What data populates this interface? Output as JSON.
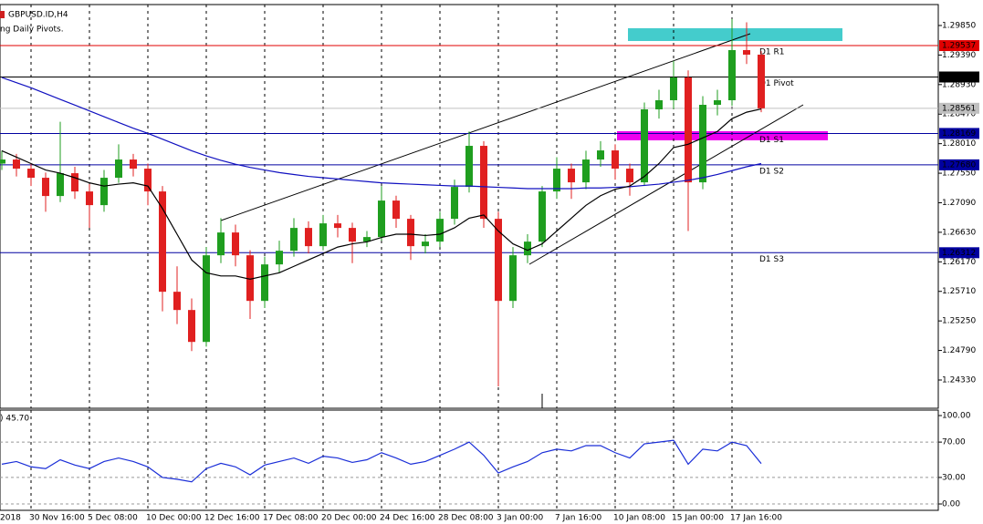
{
  "chart_data": {
    "type": "candlestick",
    "title": "GBPUSD.ID,H4",
    "subtitle": "ng Daily Pivots.",
    "categories": [
      "2018",
      null,
      "30 Nov 16:00",
      null,
      null,
      null,
      "5 Dec 08:00",
      null,
      null,
      null,
      "10 Dec 00:00",
      null,
      null,
      null,
      "12 Dec 16:00",
      null,
      null,
      null,
      "17 Dec 08:00",
      null,
      null,
      null,
      "20 Dec 00:00",
      null,
      null,
      null,
      "24 Dec 16:00",
      null,
      null,
      null,
      "28 Dec 08:00",
      null,
      null,
      null,
      "3 Jan 00:00",
      null,
      null,
      null,
      "7 Jan 16:00",
      null,
      null,
      null,
      "10 Jan 08:00",
      null,
      null,
      null,
      "15 Jan 00:00",
      null,
      null,
      null,
      "17 Jan 16:00",
      null,
      null
    ],
    "open": [
      1.277,
      1.27763,
      1.27621,
      1.27479,
      1.27195,
      1.2755,
      1.27266,
      1.27053,
      1.27479,
      1.27763,
      1.27621,
      1.27266,
      1.25704,
      1.2542,
      1.24923,
      1.26272,
      1.26627,
      1.26272,
      1.25562,
      1.2613,
      1.26343,
      1.26698,
      1.26414,
      1.26769,
      1.26698,
      1.26485,
      1.26556,
      1.27124,
      1.2684,
      1.26414,
      1.26485,
      1.2684,
      1.27337,
      1.27976,
      1.2684,
      1.25562,
      1.26272,
      1.26485,
      1.27266,
      1.27621,
      1.27408,
      1.27763,
      1.27905,
      1.27621,
      1.27408,
      1.28544,
      1.28686,
      1.29041,
      1.27408,
      1.28615,
      1.28686,
      1.29467,
      1.29396
    ],
    "high": [
      1.279,
      1.2785,
      1.277,
      1.2756,
      1.2835,
      1.2765,
      1.2738,
      1.276,
      1.28,
      1.2785,
      1.277,
      1.2735,
      1.261,
      1.256,
      1.264,
      1.2685,
      1.2675,
      1.2635,
      1.2625,
      1.265,
      1.2685,
      1.268,
      1.269,
      1.269,
      1.2678,
      1.2665,
      1.2735,
      1.272,
      1.269,
      1.266,
      1.2695,
      1.2745,
      1.282,
      1.2805,
      1.2695,
      1.264,
      1.266,
      1.2735,
      1.278,
      1.277,
      1.279,
      1.2805,
      1.28,
      1.277,
      1.2865,
      1.2885,
      1.293,
      1.2915,
      1.2875,
      1.2885,
      1.2995,
      1.299,
      1.2945
    ],
    "low": [
      1.276,
      1.275,
      1.2735,
      1.2695,
      1.271,
      1.2715,
      1.267,
      1.2695,
      1.274,
      1.275,
      1.2705,
      1.254,
      1.252,
      1.2478,
      1.2485,
      1.2615,
      1.261,
      1.2528,
      1.2545,
      1.26,
      1.2625,
      1.263,
      1.2635,
      1.2655,
      1.2615,
      1.264,
      1.265,
      1.267,
      1.262,
      1.263,
      1.264,
      1.2675,
      1.2725,
      1.267,
      1.2423,
      1.2545,
      1.2615,
      1.264,
      1.2715,
      1.2715,
      1.273,
      1.2765,
      1.2745,
      1.272,
      1.2735,
      1.284,
      1.2855,
      1.2665,
      1.273,
      1.2845,
      1.286,
      1.2925,
      1.285
    ],
    "close": [
      1.27763,
      1.27621,
      1.27479,
      1.27195,
      1.2755,
      1.27266,
      1.27053,
      1.27479,
      1.27763,
      1.27621,
      1.27266,
      1.25704,
      1.2542,
      1.24923,
      1.26272,
      1.26627,
      1.26272,
      1.25562,
      1.2613,
      1.26343,
      1.26698,
      1.26414,
      1.26769,
      1.26698,
      1.26485,
      1.26556,
      1.27124,
      1.2684,
      1.26414,
      1.26485,
      1.2684,
      1.27337,
      1.27976,
      1.2684,
      1.25562,
      1.26272,
      1.26485,
      1.27266,
      1.27621,
      1.27408,
      1.27763,
      1.27905,
      1.27621,
      1.27408,
      1.28544,
      1.28686,
      1.29041,
      1.27408,
      1.28615,
      1.28686,
      1.29467,
      1.29396,
      1.28561
    ],
    "up_color": "#1f9e1f",
    "down_color": "#e02020",
    "moving_averages": [
      {
        "color": "#1010c0",
        "values": [
          1.2904,
          1.2896,
          1.2888,
          1.2879,
          1.287,
          1.2861,
          1.2852,
          1.2843,
          1.2834,
          1.2825,
          1.2817,
          1.2808,
          1.2799,
          1.279,
          1.2782,
          1.2775,
          1.2769,
          1.2764,
          1.276,
          1.2756,
          1.2753,
          1.275,
          1.2748,
          1.2746,
          1.2744,
          1.2742,
          1.274,
          1.2739,
          1.2738,
          1.2737,
          1.2736,
          1.2735,
          1.2735,
          1.2734,
          1.2733,
          1.2732,
          1.2731,
          1.2731,
          1.2731,
          1.2731,
          1.2732,
          1.2732,
          1.2733,
          1.2734,
          1.2736,
          1.2738,
          1.2741,
          1.2744,
          1.2748,
          1.2753,
          1.2759,
          1.2765,
          1.277
        ]
      },
      {
        "color": "#000000",
        "values": [
          1.279,
          1.278,
          1.277,
          1.276,
          1.2755,
          1.2748,
          1.274,
          1.2735,
          1.2738,
          1.274,
          1.2735,
          1.27,
          1.266,
          1.262,
          1.26,
          1.2595,
          1.2595,
          1.259,
          1.2595,
          1.26,
          1.261,
          1.262,
          1.263,
          1.264,
          1.2645,
          1.2648,
          1.2655,
          1.266,
          1.266,
          1.2658,
          1.266,
          1.267,
          1.2685,
          1.269,
          1.2665,
          1.2645,
          1.2635,
          1.2645,
          1.2665,
          1.2685,
          1.2705,
          1.272,
          1.273,
          1.2735,
          1.275,
          1.277,
          1.2795,
          1.28,
          1.281,
          1.282,
          1.284,
          1.285,
          1.2855
        ]
      }
    ],
    "ylim": [
      1.2389,
      1.30176
    ],
    "yticks": [
      {
        "value": 1.2985,
        "label": "1.29850"
      },
      {
        "value": 1.2939,
        "label": "1.29390"
      },
      {
        "value": 1.2893,
        "label": "1.28930"
      },
      {
        "value": 1.2847,
        "label": "1.28470"
      },
      {
        "value": 1.2801,
        "label": "1.28010"
      },
      {
        "value": 1.2755,
        "label": "1.27550"
      },
      {
        "value": 1.2709,
        "label": "1.27090"
      },
      {
        "value": 1.2663,
        "label": "1.26630"
      },
      {
        "value": 1.2617,
        "label": "1.26170"
      },
      {
        "value": 1.2571,
        "label": "1.25710"
      },
      {
        "value": 1.2525,
        "label": "1.25250"
      },
      {
        "value": 1.2479,
        "label": "1.24790"
      },
      {
        "value": 1.2433,
        "label": "1.24330"
      }
    ],
    "levels": [
      {
        "name": "D1 R1",
        "color": "#e00000",
        "value": 1.29537,
        "label": "1.29537"
      },
      {
        "name": "D1 Pivot",
        "color": "#000000",
        "value": 1.29048,
        "label": "1.29048"
      },
      {
        "name": "D1 S1",
        "color": "#0000a0",
        "value": 1.28169,
        "label": "1.28169"
      },
      {
        "name": "D1 S2",
        "color": "#0000a0",
        "value": 1.2768,
        "label": "1.27680"
      },
      {
        "name": "D1 S3",
        "color": "#0000a0",
        "value": 1.26312,
        "label": "1.26312"
      }
    ],
    "current_price": {
      "value": 1.28561,
      "label": "1.28561",
      "color": "#c0c0c0"
    },
    "oscillator": {
      "label": ") 45.70",
      "color": "#1a2ed8",
      "values": [
        45,
        48,
        42,
        40,
        50,
        44,
        40,
        48,
        52,
        48,
        42,
        30,
        28,
        25,
        40,
        46,
        42,
        33,
        44,
        48,
        52,
        46,
        54,
        52,
        47,
        50,
        58,
        52,
        45,
        48,
        55,
        62,
        70,
        55,
        35,
        42,
        48,
        58,
        62,
        60,
        66,
        66,
        58,
        52,
        68,
        70,
        72,
        45,
        62,
        60,
        70,
        66,
        45.7
      ],
      "ylim": [
        -7.2,
        106.2
      ],
      "yticks": [
        {
          "value": 100,
          "label": "100.00"
        },
        {
          "value": 70,
          "label": "70.00"
        },
        {
          "value": 30,
          "label": "30.00"
        },
        {
          "value": 0,
          "label": "0.00"
        }
      ]
    }
  }
}
